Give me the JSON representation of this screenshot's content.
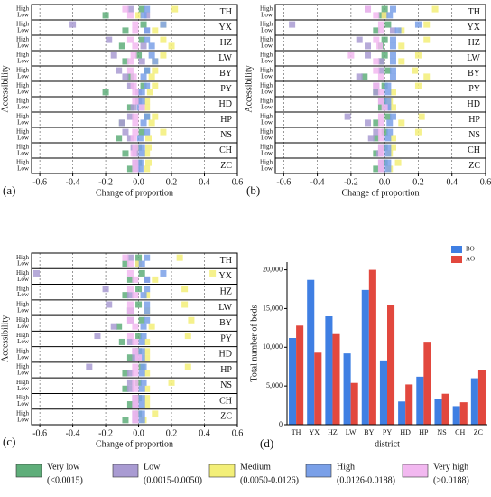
{
  "chart_data": [
    {
      "type": "dot",
      "label": "(a)",
      "xlabel": "Change of proportion",
      "ylabel": "Accessibility",
      "categories": [
        "TH",
        "YX",
        "HZ",
        "LW",
        "BY",
        "PY",
        "HD",
        "HP",
        "NS",
        "CH",
        "ZC"
      ],
      "rows": [
        "High",
        "Low"
      ],
      "xlim": [
        -0.65,
        0.6
      ],
      "xticks": [
        -0.6,
        -0.4,
        -0.2,
        {
          "value": 0,
          "label": "0.0"
        },
        0.2,
        0.4,
        0.6
      ],
      "grid": true,
      "series": [
        {
          "values": [
            [
              0.02,
              -0.2
            ],
            [
              0.03,
              -0.08
            ],
            [
              0.02,
              -0.1
            ],
            [
              0.0,
              -0.08
            ],
            [
              0.05,
              -0.05
            ],
            [
              0.03,
              -0.2
            ],
            [
              0.0,
              -0.05
            ],
            [
              0.05,
              -0.1
            ],
            [
              0.02,
              -0.12
            ],
            [
              0.0,
              -0.08
            ],
            [
              0.0,
              -0.05
            ]
          ]
        },
        {
          "values": [
            [
              -0.05,
              0.05
            ],
            [
              -0.4,
              0.05
            ],
            [
              -0.18,
              0.03
            ],
            [
              -0.15,
              0.02
            ],
            [
              -0.12,
              -0.08
            ],
            [
              -0.05,
              0.0
            ],
            [
              0.0,
              -0.03
            ],
            [
              -0.05,
              -0.1
            ],
            [
              -0.08,
              -0.05
            ],
            [
              -0.03,
              -0.02
            ],
            [
              -0.02,
              -0.01
            ]
          ]
        },
        {
          "values": [
            [
              0.22,
              0.0
            ],
            [
              0.15,
              0.1
            ],
            [
              0.15,
              0.2
            ],
            [
              0.15,
              0.1
            ],
            [
              0.1,
              0.08
            ],
            [
              0.1,
              0.07
            ],
            [
              0.05,
              0.05
            ],
            [
              0.1,
              0.08
            ],
            [
              0.15,
              0.06
            ],
            [
              0.06,
              0.05
            ],
            [
              0.06,
              0.05
            ]
          ]
        },
        {
          "values": [
            [
              0.05,
              0.03
            ],
            [
              0.15,
              0.05
            ],
            [
              0.05,
              0.08
            ],
            [
              0.08,
              0.1
            ],
            [
              0.05,
              0.03
            ],
            [
              0.05,
              0.02
            ],
            [
              0.02,
              0.01
            ],
            [
              0.05,
              0.03
            ],
            [
              0.05,
              0.01
            ],
            [
              0.02,
              0.02
            ],
            [
              0.01,
              0.01
            ]
          ]
        },
        {
          "values": [
            [
              -0.08,
              -0.05
            ],
            [
              -0.02,
              -0.02
            ],
            [
              -0.05,
              -0.02
            ],
            [
              -0.03,
              -0.05
            ],
            [
              -0.05,
              -0.03
            ],
            [
              -0.03,
              -0.02
            ],
            [
              -0.02,
              0.02
            ],
            [
              -0.02,
              -0.02
            ],
            [
              -0.02,
              -0.03
            ],
            [
              -0.02,
              -0.03
            ],
            [
              -0.02,
              -0.02
            ]
          ]
        }
      ]
    },
    {
      "type": "dot",
      "label": "(b)",
      "xlabel": "Change of proportion",
      "ylabel": "Accessibility",
      "categories": [
        "TH",
        "YX",
        "HZ",
        "LW",
        "BY",
        "PY",
        "HD",
        "HP",
        "NS",
        "CH",
        "ZC"
      ],
      "rows": [
        "High",
        "Low"
      ],
      "xlim": [
        -0.65,
        0.6
      ],
      "xticks": [
        -0.6,
        -0.4,
        -0.2,
        {
          "value": 0,
          "label": "0.0"
        },
        0.2,
        0.4,
        0.6
      ],
      "grid": true,
      "series": [
        {
          "values": [
            [
              0.0,
              -0.02
            ],
            [
              0.02,
              -0.05
            ],
            [
              0.0,
              -0.02
            ],
            [
              0.0,
              -0.02
            ],
            [
              0.02,
              -0.12
            ],
            [
              0.0,
              -0.05
            ],
            [
              0.0,
              -0.02
            ],
            [
              0.02,
              -0.05
            ],
            [
              0.0,
              -0.05
            ],
            [
              0.0,
              -0.05
            ],
            [
              0.0,
              -0.05
            ]
          ]
        },
        {
          "values": [
            [
              -0.1,
              0.0
            ],
            [
              -0.55,
              0.05
            ],
            [
              -0.15,
              -0.1
            ],
            [
              -0.1,
              -0.02
            ],
            [
              -0.02,
              -0.15
            ],
            [
              -0.05,
              -0.05
            ],
            [
              -0.02,
              0.02
            ],
            [
              -0.22,
              -0.1
            ],
            [
              -0.05,
              -0.08
            ],
            [
              -0.02,
              -0.03
            ],
            [
              -0.02,
              -0.02
            ]
          ]
        },
        {
          "values": [
            [
              0.3,
              0.0
            ],
            [
              0.25,
              0.1
            ],
            [
              0.25,
              0.1
            ],
            [
              0.2,
              0.1
            ],
            [
              0.18,
              0.25
            ],
            [
              0.2,
              0.05
            ],
            [
              0.03,
              0.05
            ],
            [
              0.22,
              0.1
            ],
            [
              0.2,
              0.05
            ],
            [
              0.05,
              0.03
            ],
            [
              0.08,
              0.03
            ]
          ]
        },
        {
          "values": [
            [
              0.05,
              0.03
            ],
            [
              0.2,
              0.08
            ],
            [
              0.05,
              0.05
            ],
            [
              0.05,
              0.05
            ],
            [
              0.05,
              0.05
            ],
            [
              0.02,
              0.02
            ],
            [
              0.02,
              0.02
            ],
            [
              0.05,
              0.03
            ],
            [
              0.03,
              0.02
            ],
            [
              0.02,
              0.02
            ],
            [
              0.02,
              0.02
            ]
          ]
        },
        {
          "values": [
            [
              -0.1,
              -0.05
            ],
            [
              -0.02,
              -0.02
            ],
            [
              -0.05,
              -0.03
            ],
            [
              -0.2,
              -0.05
            ],
            [
              -0.05,
              -0.02
            ],
            [
              -0.05,
              -0.02
            ],
            [
              -0.02,
              0.0
            ],
            [
              -0.02,
              -0.02
            ],
            [
              -0.02,
              -0.02
            ],
            [
              -0.02,
              -0.02
            ],
            [
              -0.02,
              -0.02
            ]
          ]
        }
      ]
    },
    {
      "type": "dot",
      "label": "(c)",
      "xlabel": "Change of proportion",
      "ylabel": "Accessibility",
      "categories": [
        "TH",
        "YX",
        "HZ",
        "LW",
        "BY",
        "PY",
        "HD",
        "HP",
        "NS",
        "CH",
        "ZC"
      ],
      "rows": [
        "High",
        "Low"
      ],
      "xlim": [
        -0.65,
        0.6
      ],
      "xticks": [
        -0.6,
        -0.4,
        -0.2,
        {
          "value": 0,
          "label": "0.0"
        },
        0.2,
        0.4,
        0.6
      ],
      "grid": true,
      "series": [
        {
          "values": [
            [
              0.0,
              -0.08
            ],
            [
              0.02,
              -0.05
            ],
            [
              0.0,
              -0.08
            ],
            [
              0.0,
              -0.05
            ],
            [
              0.02,
              -0.12
            ],
            [
              0.0,
              -0.1
            ],
            [
              0.0,
              -0.05
            ],
            [
              0.02,
              -0.08
            ],
            [
              0.0,
              -0.08
            ],
            [
              0.0,
              -0.05
            ],
            [
              0.0,
              -0.08
            ]
          ]
        },
        {
          "values": [
            [
              -0.05,
              0.0
            ],
            [
              -0.62,
              0.05
            ],
            [
              -0.2,
              -0.05
            ],
            [
              -0.18,
              -0.05
            ],
            [
              -0.05,
              -0.15
            ],
            [
              -0.25,
              -0.05
            ],
            [
              -0.02,
              -0.02
            ],
            [
              -0.3,
              -0.05
            ],
            [
              -0.05,
              -0.05
            ],
            [
              -0.02,
              -0.02
            ],
            [
              -0.02,
              -0.02
            ]
          ]
        },
        {
          "values": [
            [
              0.25,
              0.0
            ],
            [
              0.45,
              0.1
            ],
            [
              0.28,
              0.05
            ],
            [
              0.28,
              0.05
            ],
            [
              0.32,
              0.08
            ],
            [
              0.3,
              0.05
            ],
            [
              0.05,
              0.05
            ],
            [
              0.3,
              0.05
            ],
            [
              0.2,
              0.05
            ],
            [
              0.05,
              0.05
            ],
            [
              0.1,
              0.03
            ]
          ]
        },
        {
          "values": [
            [
              0.05,
              0.02
            ],
            [
              0.15,
              0.05
            ],
            [
              0.05,
              0.03
            ],
            [
              0.05,
              0.05
            ],
            [
              0.05,
              0.03
            ],
            [
              0.03,
              0.02
            ],
            [
              0.02,
              0.02
            ],
            [
              0.03,
              0.02
            ],
            [
              0.03,
              0.02
            ],
            [
              0.02,
              0.02
            ],
            [
              0.02,
              0.02
            ]
          ]
        },
        {
          "values": [
            [
              -0.08,
              -0.05
            ],
            [
              -0.05,
              -0.02
            ],
            [
              -0.05,
              -0.02
            ],
            [
              -0.05,
              -0.05
            ],
            [
              -0.05,
              -0.02
            ],
            [
              -0.05,
              -0.02
            ],
            [
              -0.02,
              0.0
            ],
            [
              -0.02,
              -0.02
            ],
            [
              -0.02,
              -0.02
            ],
            [
              -0.02,
              -0.02
            ],
            [
              -0.02,
              -0.02
            ]
          ]
        }
      ]
    },
    {
      "type": "bar",
      "label": "(d)",
      "xlabel": "district",
      "ylabel": "Total number of beds",
      "categories": [
        "TH",
        "YX",
        "HZ",
        "LW",
        "BY",
        "PY",
        "HD",
        "HP",
        "NS",
        "CH",
        "ZC"
      ],
      "ylim": [
        0,
        21000
      ],
      "yticks": [
        0,
        {
          "value": 5000,
          "label": "5,000"
        },
        {
          "value": 10000,
          "label": "10,000"
        },
        {
          "value": 15000,
          "label": "15,000"
        },
        {
          "value": 20000,
          "label": "20,000"
        }
      ],
      "legend_position": "upper right",
      "series": [
        {
          "name": "BO",
          "color": "#3f7fe3",
          "values": [
            11200,
            18700,
            14000,
            9200,
            17400,
            8300,
            3000,
            6200,
            3300,
            2400,
            6000
          ]
        },
        {
          "name": "AO",
          "color": "#e2483e",
          "values": [
            12800,
            9300,
            11700,
            5400,
            20000,
            15500,
            5200,
            10600,
            4000,
            2900,
            7000
          ]
        }
      ]
    }
  ],
  "legend": [
    {
      "name": "Very low",
      "range": "(<0.0015)",
      "color": "#5fae7a"
    },
    {
      "name": "Low",
      "range": "(0.0015-0.0050)",
      "color": "#a99bd2"
    },
    {
      "name": "Medium",
      "range": "(0.0050-0.0126)",
      "color": "#f3ef78"
    },
    {
      "name": "High",
      "range": "(0.0126-0.0188)",
      "color": "#7aa0e8"
    },
    {
      "name": "Very high",
      "range": "(>0.0188)",
      "color": "#f2b8f0"
    }
  ]
}
